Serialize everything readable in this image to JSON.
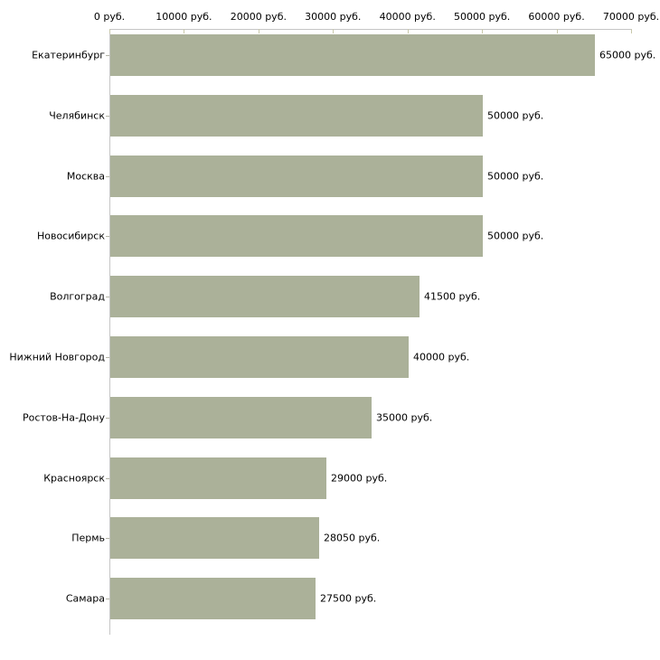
{
  "chart_data": {
    "type": "bar",
    "orientation": "horizontal",
    "title": "",
    "xlabel": "",
    "ylabel": "",
    "categories": [
      "Екатеринбург",
      "Челябинск",
      "Москва",
      "Новосибирск",
      "Волгоград",
      "Нижний Новгород",
      "Ростов-На-Дону",
      "Красноярск",
      "Пермь",
      "Самара"
    ],
    "values": [
      65000,
      50000,
      50000,
      50000,
      41500,
      40000,
      35000,
      29000,
      28050,
      27500
    ],
    "value_labels": [
      "65000 руб.",
      "50000 руб.",
      "50000 руб.",
      "50000 руб.",
      "41500 руб.",
      "40000 руб.",
      "35000 руб.",
      "29000 руб.",
      "28050 руб.",
      "27500 руб."
    ],
    "x_tick_values": [
      0,
      10000,
      20000,
      30000,
      40000,
      50000,
      60000,
      70000
    ],
    "x_tick_labels": [
      "0 руб.",
      "10000 руб.",
      "20000 руб.",
      "30000 руб.",
      "40000 руб.",
      "50000 руб.",
      "60000 руб.",
      "70000 руб."
    ],
    "xlim": [
      0,
      70000
    ],
    "grid": false,
    "legend": false,
    "axis_position": "top",
    "colors": {
      "bar_fill": "#abb199",
      "axis_line": "#c6c6c6",
      "tick_mark": "#c9c9ab",
      "category_tick": "#b4b4a6",
      "text": "#000000",
      "background": "#ffffff"
    }
  }
}
